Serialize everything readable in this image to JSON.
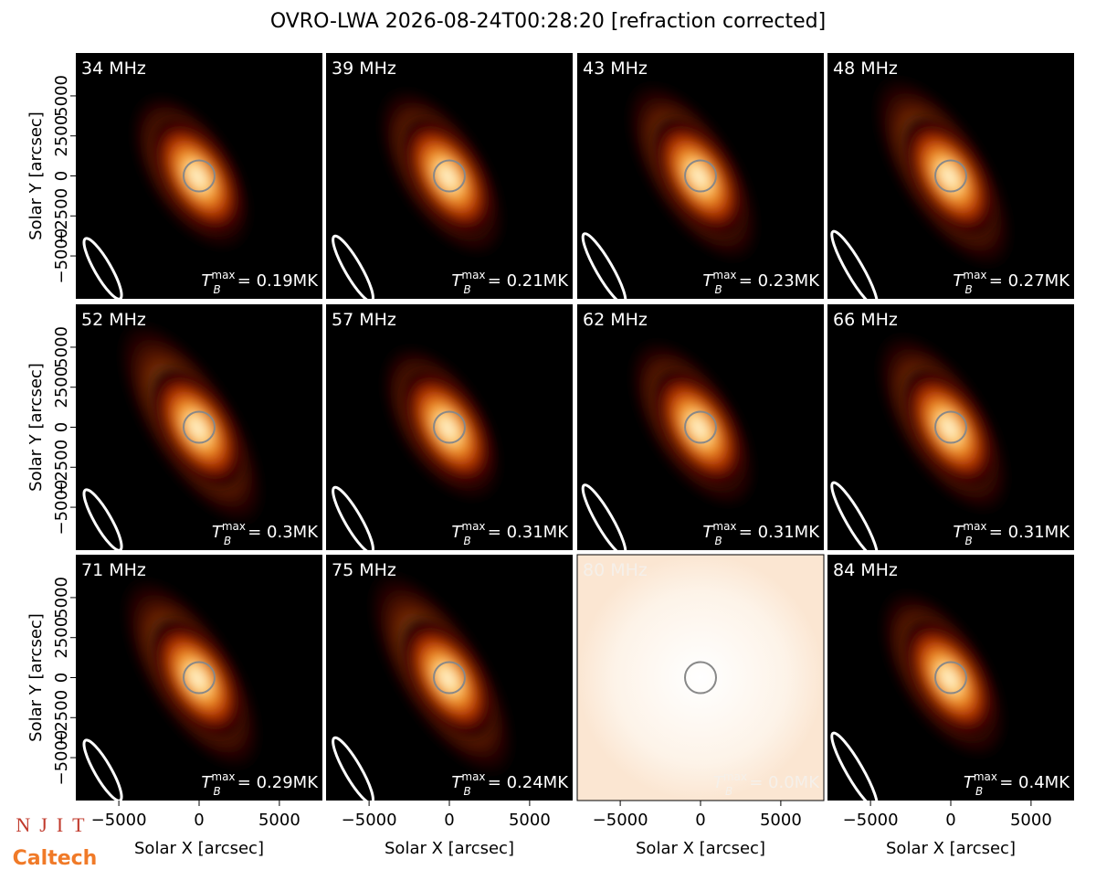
{
  "chart_data": {
    "type": "image-grid",
    "title": "OVRO-LWA 2026-08-24T00:28:20 [refraction corrected]",
    "x_label": "Solar X [arcsec]",
    "y_label": "Solar Y [arcsec]",
    "xlim": [
      -7680,
      7680
    ],
    "ylim": [
      -7680,
      7680
    ],
    "xticks": [
      {
        "value": -5000,
        "label": "−5000"
      },
      0,
      5000
    ],
    "yticks": [
      {
        "value": -5000,
        "label": "−5000"
      },
      {
        "value": -2500,
        "label": "−2500"
      },
      0,
      2500,
      5000
    ],
    "tb_symbol": "T",
    "tb_sub": "B",
    "tb_sup": "max",
    "panels": [
      {
        "freq": "34 MHz",
        "tb": "= 0.19MK"
      },
      {
        "freq": "39 MHz",
        "tb": "= 0.21MK"
      },
      {
        "freq": "43 MHz",
        "tb": "= 0.23MK"
      },
      {
        "freq": "48 MHz",
        "tb": "= 0.27MK"
      },
      {
        "freq": "52 MHz",
        "tb": "= 0.3MK"
      },
      {
        "freq": "57 MHz",
        "tb": "= 0.31MK"
      },
      {
        "freq": "62 MHz",
        "tb": "= 0.31MK"
      },
      {
        "freq": "66 MHz",
        "tb": "= 0.31MK"
      },
      {
        "freq": "71 MHz",
        "tb": "= 0.29MK"
      },
      {
        "freq": "75 MHz",
        "tb": "= 0.24MK"
      },
      {
        "freq": "80 MHz",
        "tb": "= 0.0MK"
      },
      {
        "freq": "84 MHz",
        "tb": "= 0.4MK"
      }
    ],
    "logo_top": "NJIT",
    "logo_bottom": "Caltech"
  }
}
